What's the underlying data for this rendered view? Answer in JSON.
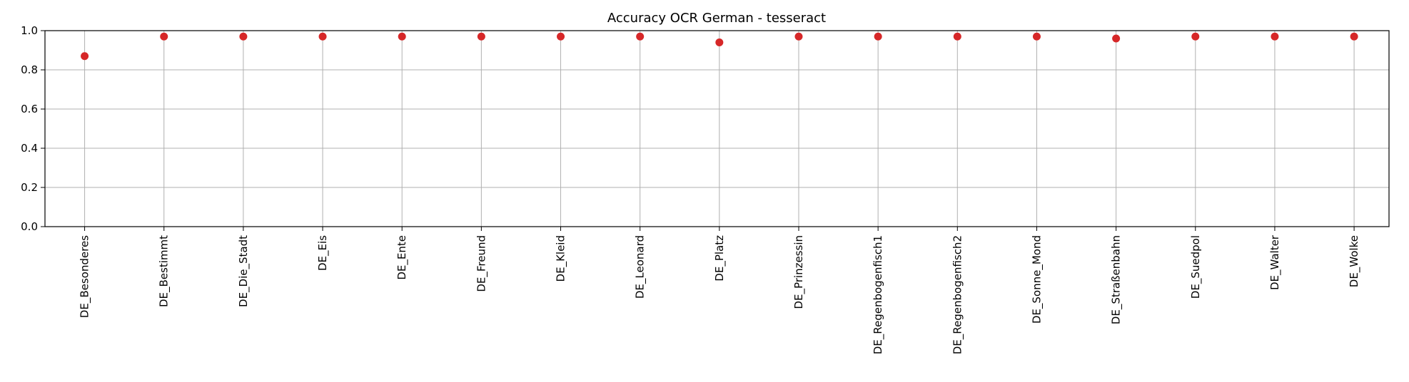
{
  "chart_data": {
    "type": "scatter",
    "title": "Accuracy OCR German - tesseract",
    "xlabel": "",
    "ylabel": "",
    "categories": [
      "DE_Besonderes",
      "DE_Bestimmt",
      "DE_Die_Stadt",
      "DE_Eis",
      "DE_Ente",
      "DE_Freund",
      "DE_Kleid",
      "DE_Leonard",
      "DE_Platz",
      "DE_Prinzessin",
      "DE_Regenbogenfisch1",
      "DE_Regenbogenfisch2",
      "DE_Sonne_Mond",
      "DE_Straßenbahn",
      "DE_Suedpol",
      "DE_Walter",
      "DE_Wolke"
    ],
    "series": [
      {
        "values": [
          0.87,
          0.97,
          0.97,
          0.97,
          0.97,
          0.97,
          0.97,
          0.97,
          0.94,
          0.97,
          0.97,
          0.97,
          0.97,
          0.96,
          0.97,
          0.97,
          0.97
        ],
        "color": "#d62728"
      }
    ],
    "ylim": [
      0.0,
      1.0
    ],
    "yticks": [
      "0.0",
      "0.2",
      "0.4",
      "0.6",
      "0.8",
      "1.0"
    ],
    "grid": true,
    "legend": "none"
  }
}
